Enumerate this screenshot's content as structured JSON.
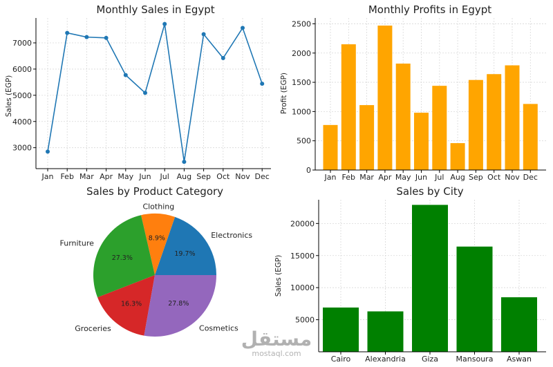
{
  "chart_data": [
    {
      "type": "line",
      "title": "Monthly Sales in Egypt",
      "ylabel": "Sales (EGP)",
      "xlabel": "",
      "categories": [
        "Jan",
        "Feb",
        "Mar",
        "Apr",
        "May",
        "Jun",
        "Jul",
        "Aug",
        "Sep",
        "Oct",
        "Nov",
        "Dec"
      ],
      "values": [
        2850,
        7380,
        7220,
        7190,
        5770,
        5090,
        7720,
        2460,
        7330,
        6420,
        7570,
        5440
      ],
      "yticks": [
        3000,
        4000,
        5000,
        6000,
        7000
      ],
      "ylim": [
        2200,
        7950
      ],
      "color": "#1f77b4",
      "grid": true
    },
    {
      "type": "bar",
      "title": "Monthly Profits in Egypt",
      "ylabel": "Profit (EGP)",
      "xlabel": "",
      "categories": [
        "Jan",
        "Feb",
        "Mar",
        "Apr",
        "May",
        "Jun",
        "Jul",
        "Aug",
        "Sep",
        "Oct",
        "Nov",
        "Dec"
      ],
      "values": [
        770,
        2150,
        1110,
        2470,
        1820,
        980,
        1440,
        460,
        1540,
        1640,
        1790,
        1130
      ],
      "yticks": [
        0,
        500,
        1000,
        1500,
        2000,
        2500
      ],
      "ylim": [
        0,
        2600
      ],
      "color": "#FFA500",
      "grid": true
    },
    {
      "type": "pie",
      "title": "Sales by Product Category",
      "slices": [
        {
          "label": "Electronics",
          "value": 19.7,
          "pct_label": "19.7%",
          "color": "#1f77b4"
        },
        {
          "label": "Cosmetics",
          "value": 27.8,
          "pct_label": "27.8%",
          "color": "#9467bd"
        },
        {
          "label": "Groceries",
          "value": 16.3,
          "pct_label": "16.3%",
          "color": "#d62728"
        },
        {
          "label": "Furniture",
          "value": 27.3,
          "pct_label": "27.3%",
          "color": "#2ca02c"
        },
        {
          "label": "Clothing",
          "value": 8.9,
          "pct_label": "8.9%",
          "color": "#ff7f0e"
        }
      ]
    },
    {
      "type": "bar",
      "title": "Sales by City",
      "ylabel": "Sales (EGP)",
      "xlabel": "",
      "categories": [
        "Cairo",
        "Alexandria",
        "Giza",
        "Mansoura",
        "Aswan"
      ],
      "values": [
        6900,
        6300,
        22900,
        16400,
        8500
      ],
      "yticks": [
        5000,
        10000,
        15000,
        20000
      ],
      "ylim": [
        0,
        23700
      ],
      "color": "#008000",
      "grid": true
    }
  ],
  "watermark": {
    "arabic": "مستقل",
    "latin": "mostaql.com"
  }
}
